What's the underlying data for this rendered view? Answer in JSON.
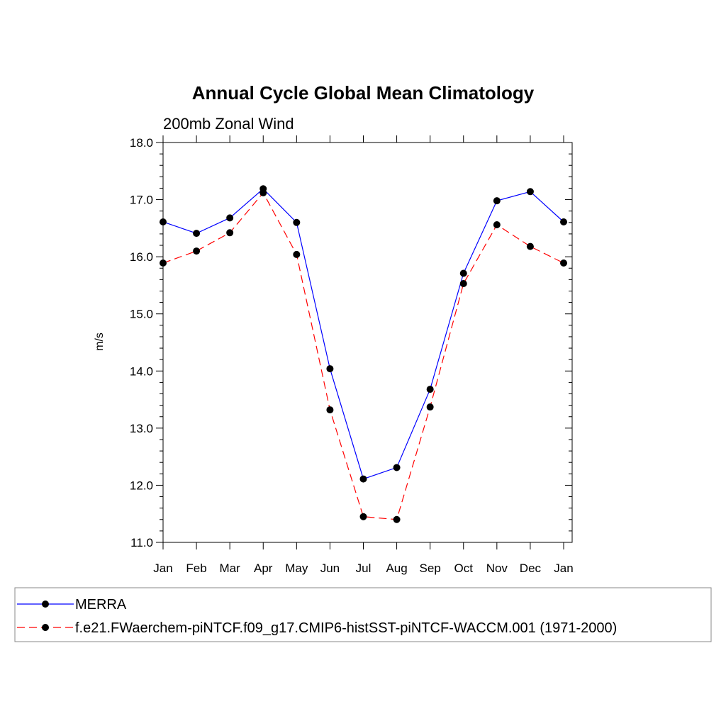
{
  "chart_data": {
    "type": "line",
    "title": "Annual Cycle Global Mean Climatology",
    "subtitle": "200mb Zonal Wind",
    "xlabel": "",
    "ylabel": "m/s",
    "categories": [
      "Jan",
      "Feb",
      "Mar",
      "Apr",
      "May",
      "Jun",
      "Jul",
      "Aug",
      "Sep",
      "Oct",
      "Nov",
      "Dec",
      "Jan"
    ],
    "ylim": [
      11.0,
      18.0
    ],
    "yticks": [
      "11.0",
      "12.0",
      "13.0",
      "14.0",
      "15.0",
      "16.0",
      "17.0",
      "18.0"
    ],
    "grid": false,
    "legend_position": "bottom",
    "series": [
      {
        "name": "MERRA",
        "color": "#0000ff",
        "dash": "solid",
        "marker": "filled-circle",
        "values": [
          16.61,
          16.41,
          16.68,
          17.19,
          16.6,
          14.04,
          12.11,
          12.31,
          13.68,
          15.71,
          16.98,
          17.14,
          16.61
        ]
      },
      {
        "name": "f.e21.FWaerchem-piNTCF.f09_g17.CMIP6-histSST-piNTCF-WACCM.001 (1971-2000)",
        "color": "#ff0000",
        "dash": "dashed",
        "marker": "filled-circle",
        "values": [
          15.89,
          16.1,
          16.42,
          17.12,
          16.04,
          13.32,
          11.45,
          11.4,
          13.37,
          15.53,
          16.56,
          16.18,
          15.89
        ]
      }
    ]
  }
}
